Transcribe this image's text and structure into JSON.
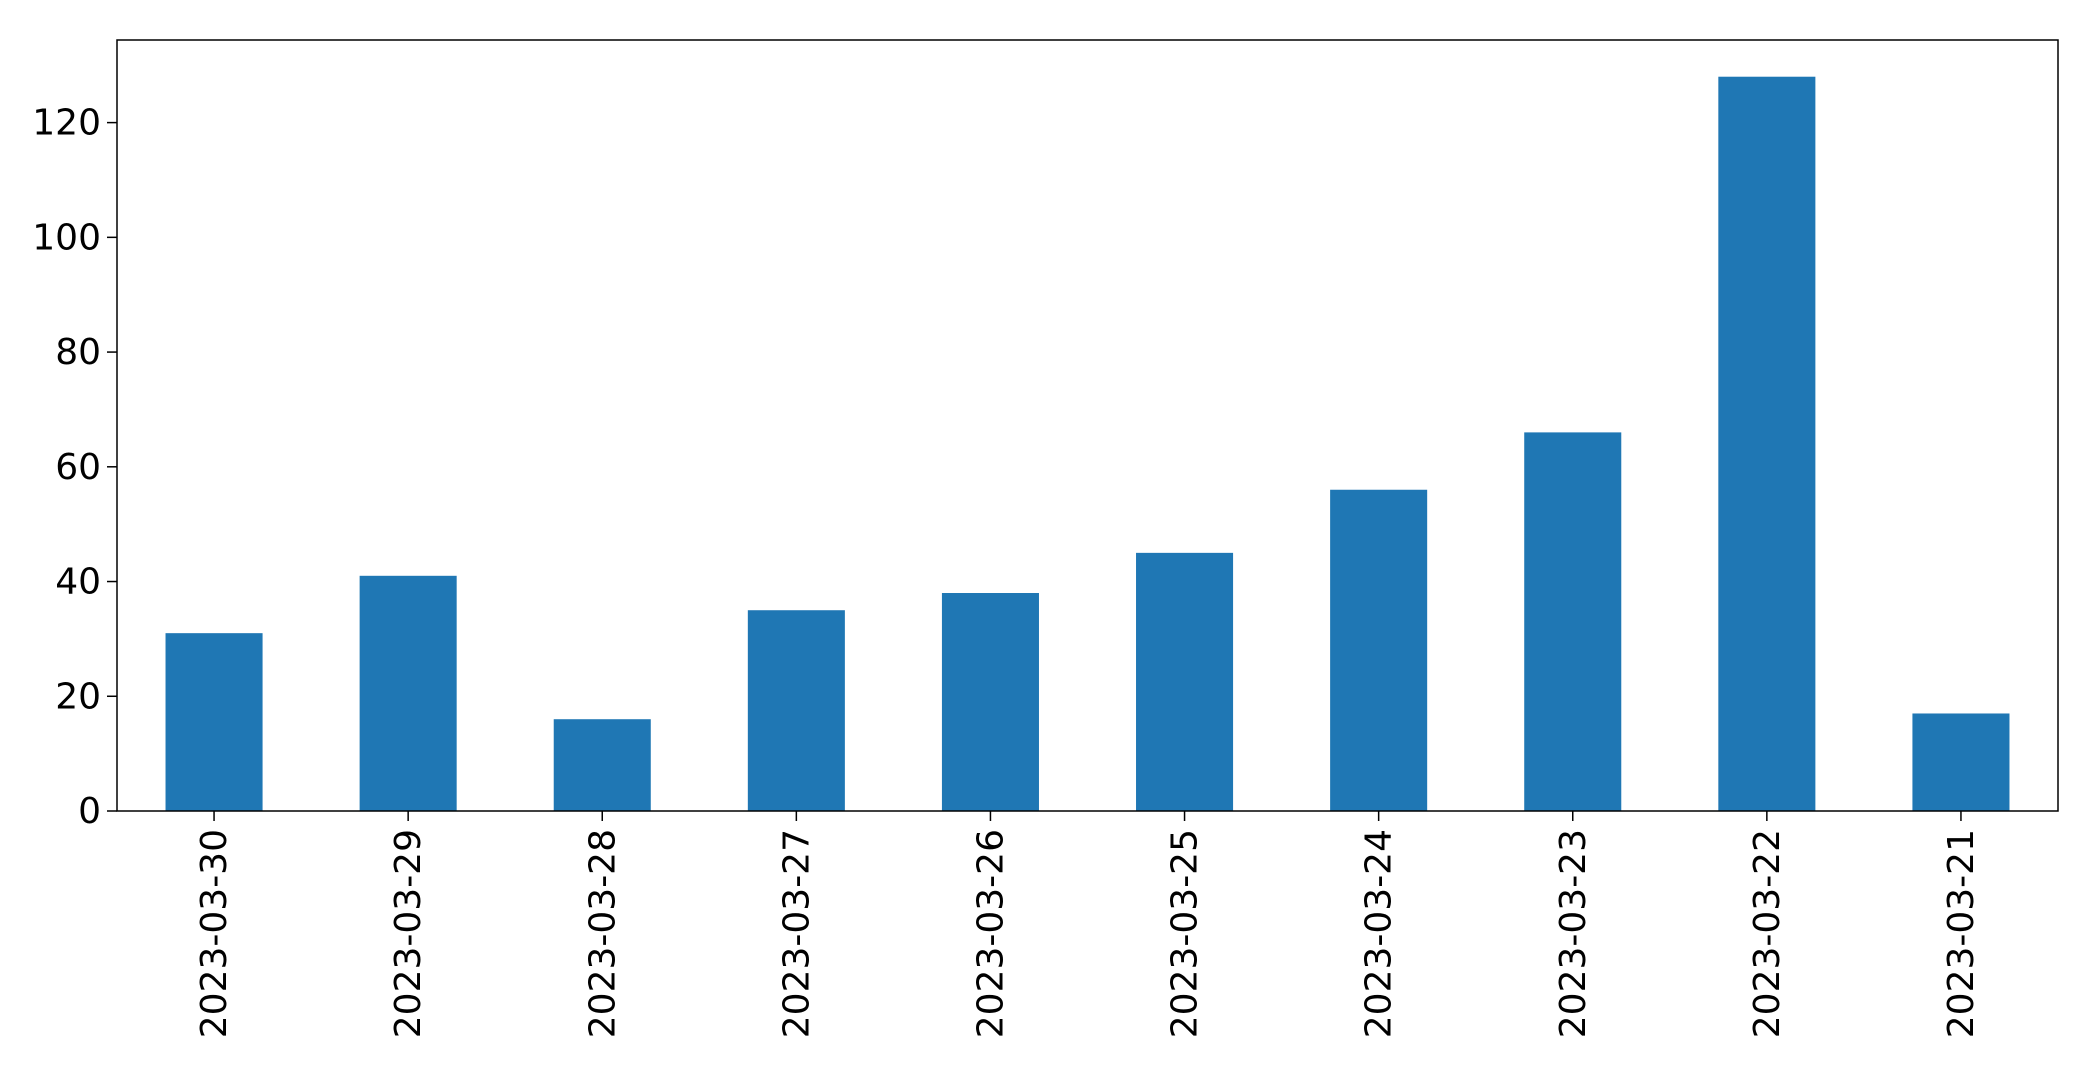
{
  "chart_data": {
    "type": "bar",
    "title": "",
    "xlabel": "",
    "ylabel": "",
    "categories": [
      "2023-03-30",
      "2023-03-29",
      "2023-03-28",
      "2023-03-27",
      "2023-03-26",
      "2023-03-25",
      "2023-03-24",
      "2023-03-23",
      "2023-03-22",
      "2023-03-21"
    ],
    "values": [
      31,
      41,
      16,
      35,
      38,
      45,
      56,
      66,
      128,
      17
    ],
    "ylim": [
      0,
      134.4
    ],
    "yticks": [
      0,
      20,
      40,
      60,
      80,
      100,
      120
    ],
    "ytick_labels": [
      "0",
      "20",
      "40",
      "60",
      "80",
      "100",
      "120"
    ],
    "grid": false,
    "legend": "none",
    "bar_color": "#1f77b4"
  }
}
